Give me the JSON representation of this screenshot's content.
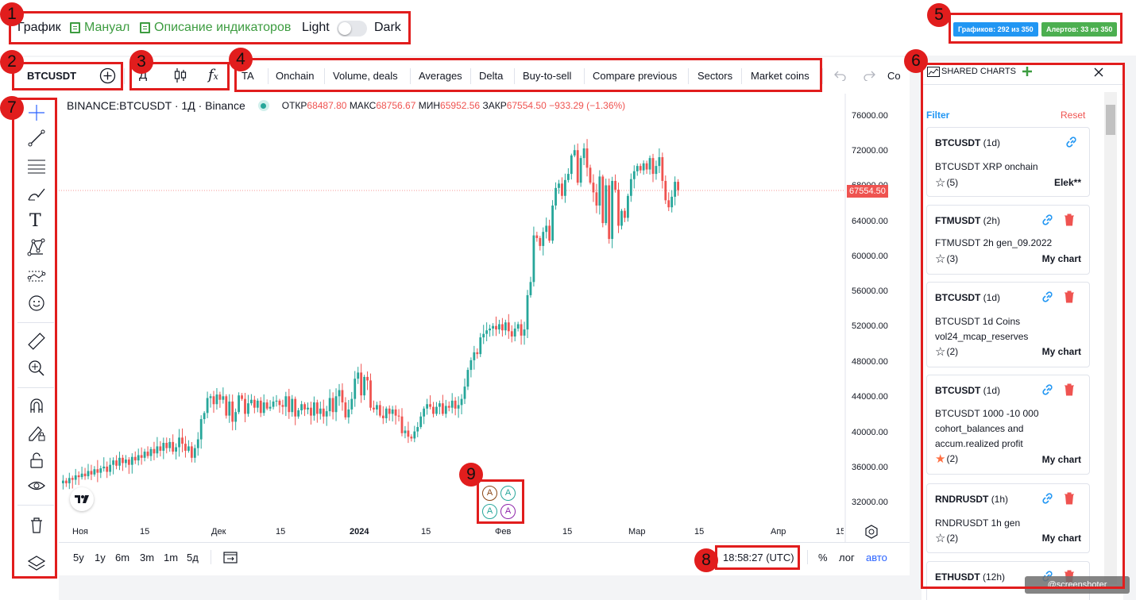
{
  "header": {
    "title": "График",
    "manual": "Мануал",
    "indicators_desc": "Описание индикаторов",
    "theme_light": "Light",
    "theme_dark": "Dark"
  },
  "limits": {
    "charts": "Графиков: 292 из 350",
    "alerts": "Алертов: 33 из 350",
    "charts_color": "#2196f3",
    "alerts_color": "#4caf50"
  },
  "symbol": "BTCUSDT",
  "interval": "Д",
  "tabs": [
    "TA",
    "Onchain",
    "Volume, deals",
    "Averages",
    "Delta",
    "Buy-to-sell",
    "Compare previous",
    "Sectors",
    "Market coins"
  ],
  "tab_cut": "Co",
  "legend": {
    "title": "BINANCE:BTCUSDT · 1Д · Binance",
    "open_label": "ОТКР",
    "open": "68487.80",
    "high_label": "МАКС",
    "high": "68756.67",
    "low_label": "МИН",
    "low": "65952.56",
    "close_label": "ЗАКР",
    "close": "67554.50",
    "change": "−933.29 (−1.36%)"
  },
  "price_axis": [
    "76000.00",
    "72000.00",
    "68000.00",
    "64000.00",
    "60000.00",
    "56000.00",
    "52000.00",
    "48000.00",
    "44000.00",
    "40000.00",
    "36000.00",
    "32000.00"
  ],
  "last_price": "67554.50",
  "time_axis": [
    "Ноя",
    "15",
    "Дек",
    "15",
    "2024",
    "15",
    "Фев",
    "15",
    "Мар",
    "15",
    "Апр",
    "15"
  ],
  "timeframes": [
    "5y",
    "1y",
    "6m",
    "3m",
    "1m",
    "5д"
  ],
  "clock": "18:58:27 (UTC)",
  "scale": {
    "percent": "%",
    "log": "лог",
    "auto": "авто"
  },
  "panel": {
    "title": "SHARED CHARTS",
    "filter": "Filter",
    "reset": "Reset",
    "cards": [
      {
        "symbol": "BTCUSDT",
        "interval": "(1d)",
        "desc1": "BTCUSDT XRP onchain",
        "desc2": "",
        "desc3": "",
        "stars": "(5)",
        "owner": "Elek**",
        "starred": false
      },
      {
        "symbol": "FTMUSDT",
        "interval": "(2h)",
        "desc1": "FTMUSDT 2h gen_09.2022",
        "desc2": "",
        "desc3": "",
        "stars": "(3)",
        "owner": "My chart",
        "starred": false
      },
      {
        "symbol": "BTCUSDT",
        "interval": "(1d)",
        "desc1": "BTCUSDT 1d Coins",
        "desc2": "vol24_mcap_reserves",
        "desc3": "",
        "stars": "(2)",
        "owner": "My chart",
        "starred": false
      },
      {
        "symbol": "BTCUSDT",
        "interval": "(1d)",
        "desc1": "BTCUSDT 1000 -10 000",
        "desc2": "cohort_balances and",
        "desc3": "accum.realized profit",
        "stars": "(2)",
        "owner": "My chart",
        "starred": true
      },
      {
        "symbol": "RNDRUSDT",
        "interval": "(1h)",
        "desc1": "RNDRUSDT 1h gen",
        "desc2": "",
        "desc3": "",
        "stars": "(2)",
        "owner": "My chart",
        "starred": false
      },
      {
        "symbol": "ETHUSDT",
        "interval": "(12h)",
        "desc1": "",
        "desc2": "",
        "desc3": "",
        "stars": "",
        "owner": "",
        "starred": false
      }
    ]
  },
  "watermark": "@screenshoter",
  "alert_markers": [
    "A",
    "A",
    "A",
    "A"
  ],
  "annotations": [
    "1",
    "2",
    "3",
    "4",
    "5",
    "6",
    "7",
    "8",
    "9"
  ],
  "colors": {
    "up": "#26a69a",
    "down": "#ef5350",
    "annotation": "#e11d1d",
    "accent": "#2962ff"
  },
  "chart_data": {
    "type": "candlestick",
    "ylim": [
      30000,
      78000
    ],
    "step_px": 3.95,
    "open": 34200,
    "closes": [
      34500,
      34200,
      34800,
      34600,
      35100,
      34900,
      35300,
      35000,
      35600,
      35200,
      35800,
      35400,
      35900,
      36100,
      35500,
      36300,
      36800,
      36200,
      37100,
      36500,
      36900,
      36300,
      37200,
      36800,
      37400,
      37100,
      37800,
      37300,
      38100,
      37600,
      38400,
      37900,
      38800,
      38200,
      38900,
      37800,
      38300,
      39400,
      38700,
      37900,
      38400,
      37100,
      38200,
      39200,
      41500,
      42200,
      43900,
      44100,
      43200,
      44300,
      43700,
      44100,
      41900,
      43500,
      41200,
      42300,
      44200,
      43800,
      42100,
      43300,
      43700,
      42800,
      43600,
      42200,
      43400,
      42700,
      42900,
      43500,
      43600,
      43100,
      42900,
      44100,
      42300,
      43800,
      41800,
      42500,
      43200,
      42600,
      42800,
      41900,
      43400,
      42100,
      42700,
      41800,
      42400,
      43900,
      42300,
      44100,
      44800,
      43400,
      41700,
      42600,
      43800,
      46100,
      46800,
      44200,
      46300,
      45900,
      42800,
      42600,
      43100,
      41900,
      41600,
      42700,
      42100,
      42600,
      41900,
      41800,
      39900,
      40200,
      39500,
      39300,
      40100,
      40600,
      41800,
      42700,
      43200,
      42900,
      42100,
      42900,
      43300,
      42100,
      43000,
      42800,
      43600,
      42700,
      43100,
      43800,
      45200,
      47100,
      48200,
      49100,
      48900,
      50800,
      51200,
      51600,
      51800,
      52100,
      51700,
      52300,
      51600,
      52500,
      51500,
      50900,
      51800,
      52300,
      51000,
      51700,
      55600,
      57100,
      62400,
      62100,
      61200,
      62800,
      63500,
      61800,
      65800,
      67800,
      68300,
      66900,
      68700,
      69400,
      71500,
      72100,
      68400,
      71200,
      72300,
      70100,
      68400,
      67300,
      65800,
      69100,
      63800,
      68100,
      62000,
      68600,
      67600,
      63500,
      65200,
      64400,
      66900,
      68800,
      69700,
      70300,
      69800,
      70600,
      69900,
      71200,
      69400,
      70300,
      71300,
      68600,
      66400,
      65600,
      66800,
      68500,
      67554
    ]
  }
}
